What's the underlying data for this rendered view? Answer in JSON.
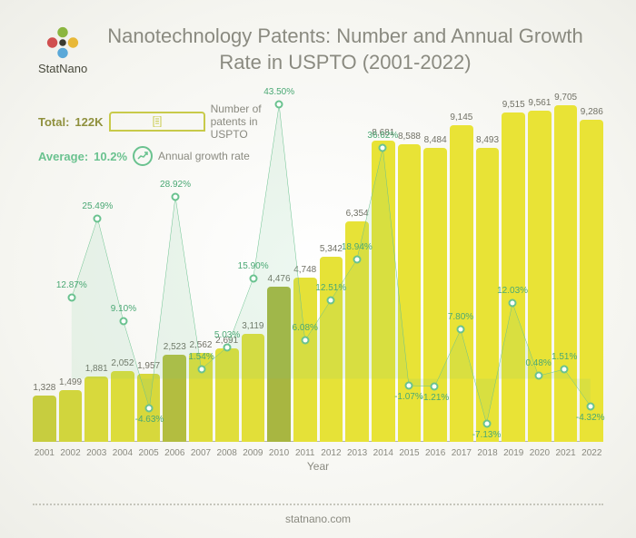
{
  "brand": {
    "name": "StatNano"
  },
  "title": "Nanotechnology Patents: Number and Annual Growth Rate in USPTO (2001-2022)",
  "legend": {
    "total_label": "Total:",
    "total_value": "122K",
    "total_desc": "Number of patents in USPTO",
    "avg_label": "Average:",
    "avg_value": "10.2%",
    "avg_desc": "Annual growth rate"
  },
  "xaxis_title": "Year",
  "footer": "statnano.com",
  "chart": {
    "type": "bar+line",
    "background_color": "#ffffff",
    "bar_max": 10000,
    "growth_max": 45,
    "growth_min": -10,
    "line_color": "#6ac28f",
    "line_width": 1.5,
    "marker_border": "#6ac28f",
    "marker_fill": "#ffffff",
    "bar_value_color": "#717166",
    "xlabel_color": "#8a8a80",
    "years": [
      {
        "year": "2001",
        "patents": 1328,
        "growth": null,
        "growth_text": "",
        "color": "#c7cd3f"
      },
      {
        "year": "2002",
        "patents": 1499,
        "growth": 12.87,
        "growth_text": "12.87%",
        "color": "#d1d53d"
      },
      {
        "year": "2003",
        "patents": 1881,
        "growth": 25.49,
        "growth_text": "25.49%",
        "color": "#d8d93c"
      },
      {
        "year": "2004",
        "patents": 2052,
        "growth": 9.1,
        "growth_text": "9.10%",
        "color": "#dcdc3b"
      },
      {
        "year": "2005",
        "patents": 1957,
        "growth": -4.63,
        "growth_text": "-4.63%",
        "color": "#d7d83c"
      },
      {
        "year": "2006",
        "patents": 2523,
        "growth": 28.92,
        "growth_text": "28.92%",
        "color": "#b3bd40"
      },
      {
        "year": "2007",
        "patents": 2562,
        "growth": 1.54,
        "growth_text": "1.54%",
        "color": "#dedd3b"
      },
      {
        "year": "2008",
        "patents": 2691,
        "growth": 5.03,
        "growth_text": "5.03%",
        "color": "#e0de3a"
      },
      {
        "year": "2009",
        "patents": 3119,
        "growth": 15.9,
        "growth_text": "15.90%",
        "color": "#e2df39"
      },
      {
        "year": "2010",
        "patents": 4476,
        "growth": 43.5,
        "growth_text": "43.50%",
        "color": "#a8b641"
      },
      {
        "year": "2011",
        "patents": 4748,
        "growth": 6.08,
        "growth_text": "6.08%",
        "color": "#e5e138"
      },
      {
        "year": "2012",
        "patents": 5342,
        "growth": 12.51,
        "growth_text": "12.51%",
        "color": "#e6e237"
      },
      {
        "year": "2013",
        "patents": 6354,
        "growth": 18.94,
        "growth_text": "18.94%",
        "color": "#e7e237"
      },
      {
        "year": "2014",
        "patents": 8681,
        "growth": 36.62,
        "growth_text": "36.62%",
        "color": "#e8e336"
      },
      {
        "year": "2015",
        "patents": 8588,
        "growth": -1.07,
        "growth_text": "-1.07%",
        "color": "#e8e336"
      },
      {
        "year": "2016",
        "patents": 8484,
        "growth": -1.21,
        "growth_text": "-1.21%",
        "color": "#e8e336"
      },
      {
        "year": "2017",
        "patents": 9145,
        "growth": 7.8,
        "growth_text": "7.80%",
        "color": "#e9e336"
      },
      {
        "year": "2018",
        "patents": 8493,
        "growth": -7.13,
        "growth_text": "-7.13%",
        "color": "#e8e336"
      },
      {
        "year": "2019",
        "patents": 9515,
        "growth": 12.03,
        "growth_text": "12.03%",
        "color": "#e9e336"
      },
      {
        "year": "2020",
        "patents": 9561,
        "growth": 0.48,
        "growth_text": "0.48%",
        "color": "#e9e336"
      },
      {
        "year": "2021",
        "patents": 9705,
        "growth": 1.51,
        "growth_text": "1.51%",
        "color": "#e9e336"
      },
      {
        "year": "2022",
        "patents": 9286,
        "growth": -4.32,
        "growth_text": "-4.32%",
        "color": "#e9e336"
      }
    ]
  }
}
